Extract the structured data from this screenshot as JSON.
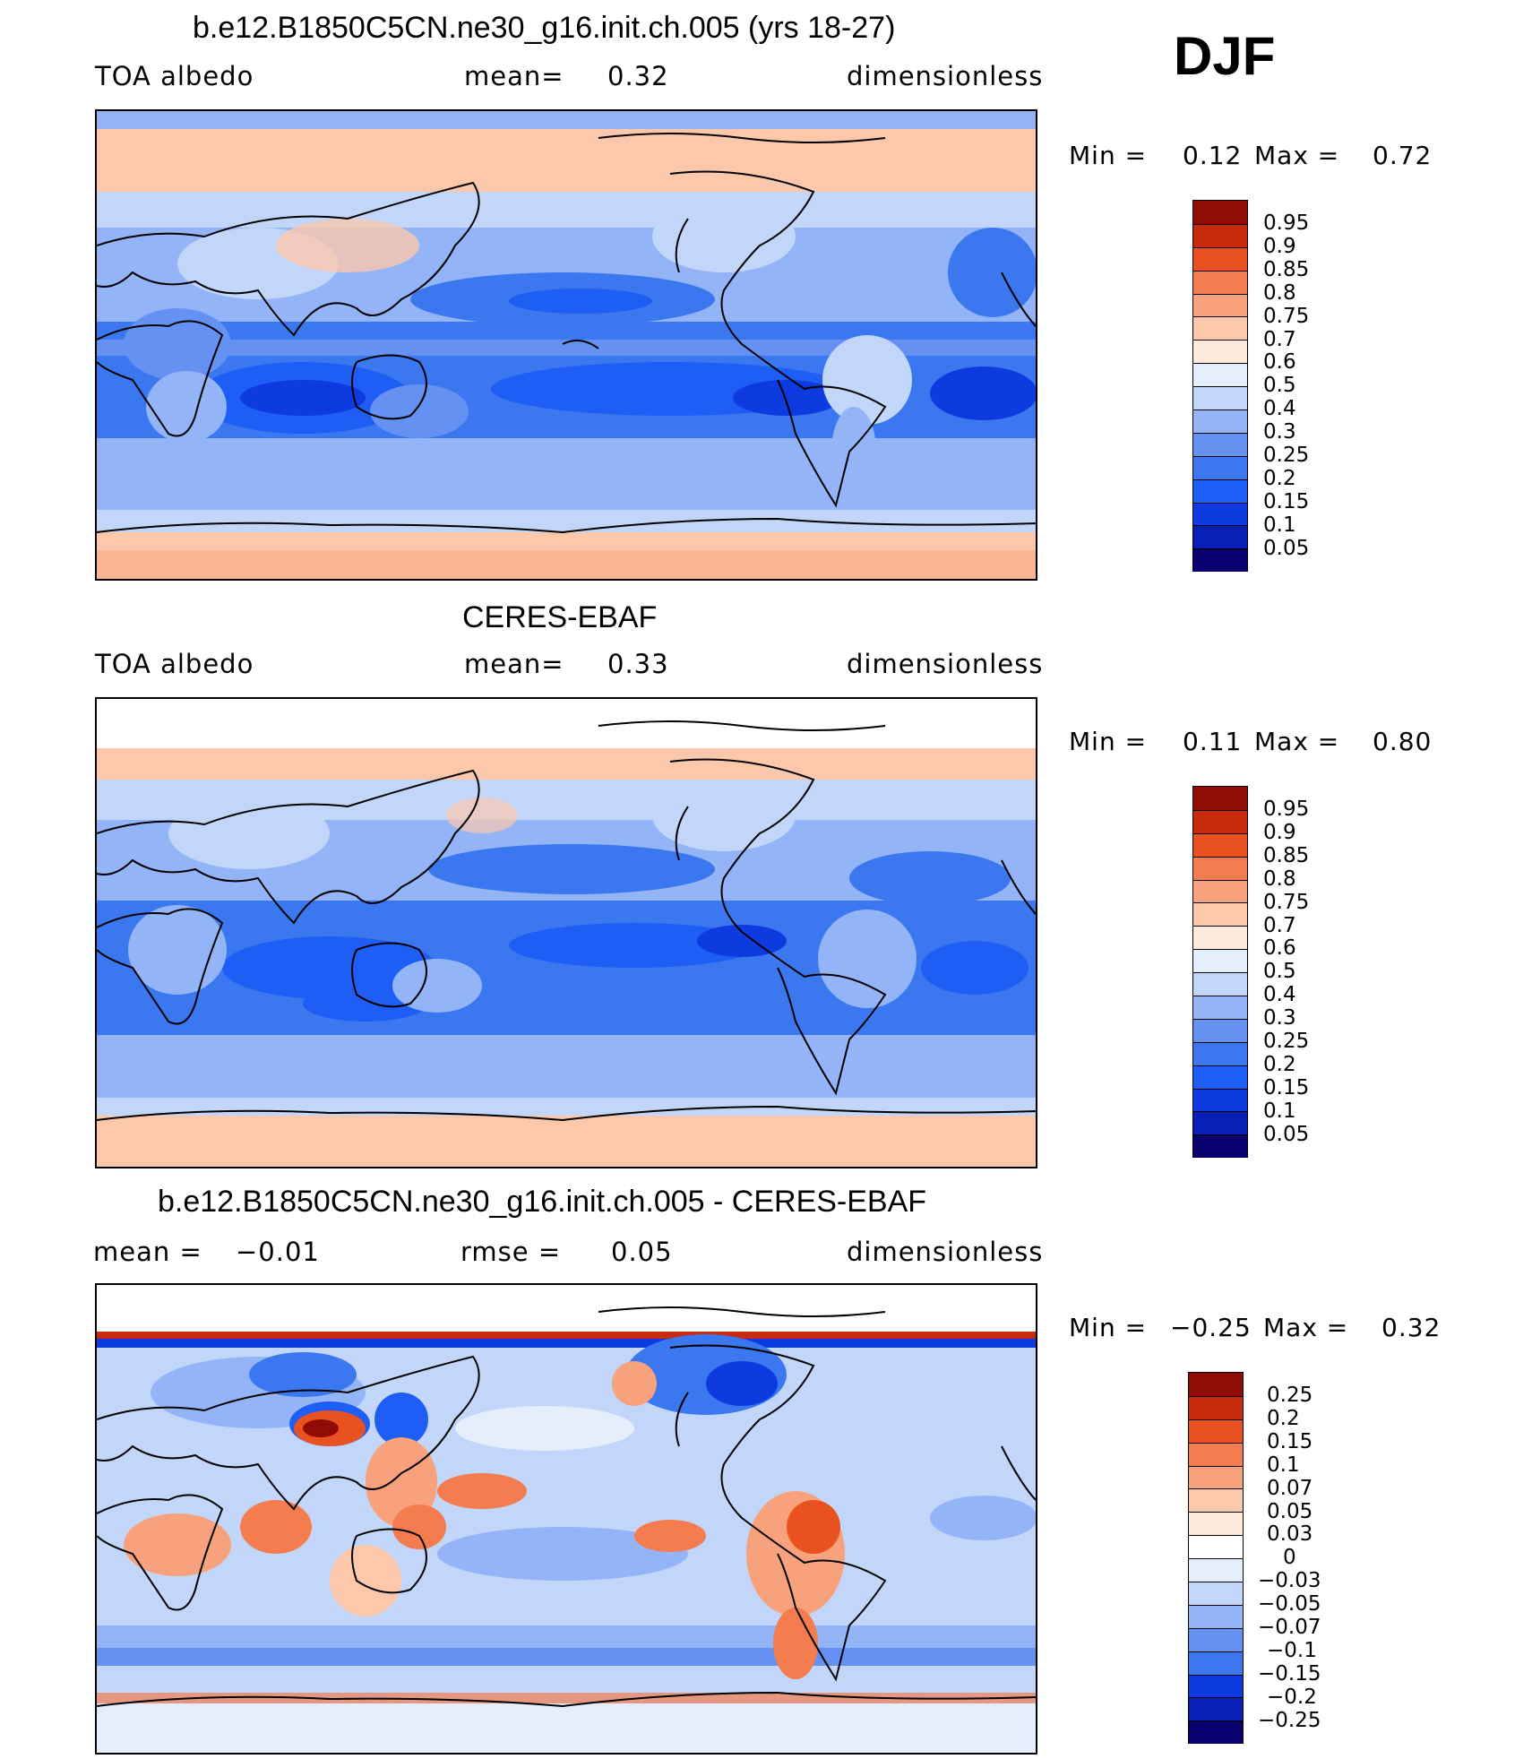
{
  "season": "DJF",
  "panels": [
    {
      "title": "b.e12.B1850C5CN.ne30_g16.init.ch.005 (yrs 18-27)",
      "left_label": "TOA albedo",
      "mid_label": "mean=",
      "mid_value": "0.32",
      "right_label": "dimensionless",
      "min_label": "Min =",
      "min_value": "0.12",
      "max_label": "Max =",
      "max_value": "0.72",
      "colorbar_labels": [
        "0.95",
        "0.9",
        "0.85",
        "0.8",
        "0.75",
        "0.7",
        "0.6",
        "0.5",
        "0.4",
        "0.3",
        "0.25",
        "0.2",
        "0.15",
        "0.1",
        "0.05"
      ]
    },
    {
      "title": "CERES-EBAF",
      "left_label": "TOA albedo",
      "mid_label": "mean=",
      "mid_value": "0.33",
      "right_label": "dimensionless",
      "min_label": "Min =",
      "min_value": "0.11",
      "max_label": "Max =",
      "max_value": "0.80",
      "colorbar_labels": [
        "0.95",
        "0.9",
        "0.85",
        "0.8",
        "0.75",
        "0.7",
        "0.6",
        "0.5",
        "0.4",
        "0.3",
        "0.25",
        "0.2",
        "0.15",
        "0.1",
        "0.05"
      ]
    },
    {
      "title": "b.e12.B1850C5CN.ne30_g16.init.ch.005 - CERES-EBAF",
      "left_label": "mean =",
      "left_value": "−0.01",
      "mid_label": "rmse =",
      "mid_value": "0.05",
      "right_label": "dimensionless",
      "min_label": "Min =",
      "min_value": "−0.25",
      "max_label": "Max =",
      "max_value": "0.32",
      "colorbar_labels": [
        "0.25",
        "0.2",
        "0.15",
        "0.1",
        "0.07",
        "0.05",
        "0.03",
        "0",
        "−0.03",
        "−0.05",
        "−0.07",
        "−0.1",
        "−0.15",
        "−0.2",
        "−0.25"
      ]
    }
  ],
  "colors": {
    "palette": [
      "#08006e",
      "#0a1fb5",
      "#0d3be0",
      "#1f5ef5",
      "#3b78f0",
      "#6592f2",
      "#93b4f6",
      "#c2d6fa",
      "#e4eefc",
      "#fdeadb",
      "#fbc8ac",
      "#f7a27c",
      "#f47c4e",
      "#ea5121",
      "#c82a0d",
      "#8e0c04"
    ],
    "coastline": "#000000"
  }
}
